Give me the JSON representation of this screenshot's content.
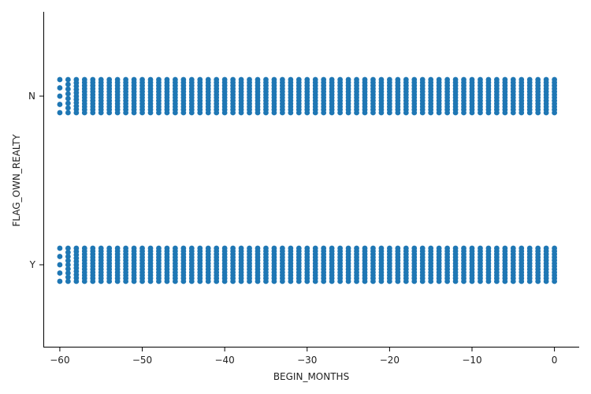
{
  "chart_data": {
    "type": "scatter",
    "title": "",
    "xlabel": "BEGIN_MONTHS",
    "ylabel": "FLAG_OWN_REALTY",
    "categories": [
      "N",
      "Y"
    ],
    "x_range": [
      -60,
      0
    ],
    "x_ticks": [
      -60,
      -50,
      -40,
      -30,
      -20,
      -10,
      0
    ],
    "x_tick_labels": [
      "−60",
      "−50",
      "−40",
      "−30",
      "−20",
      "−10",
      "0"
    ],
    "xlim": [
      -62,
      3
    ],
    "grid": false,
    "legend": "none",
    "point_color": "#1f77b4",
    "series": [
      {
        "category": "N",
        "x_min": -60,
        "x_max": 0,
        "sparse_x": {
          "-60": 5,
          "-59": 8,
          "-58": 11,
          "-57": 12,
          "-56": 12
        }
      },
      {
        "category": "Y",
        "x_min": -60,
        "x_max": 0,
        "sparse_x": {
          "-60": 5,
          "-59": 9,
          "-58": 11,
          "-57": 12,
          "-56": 12
        }
      }
    ]
  }
}
